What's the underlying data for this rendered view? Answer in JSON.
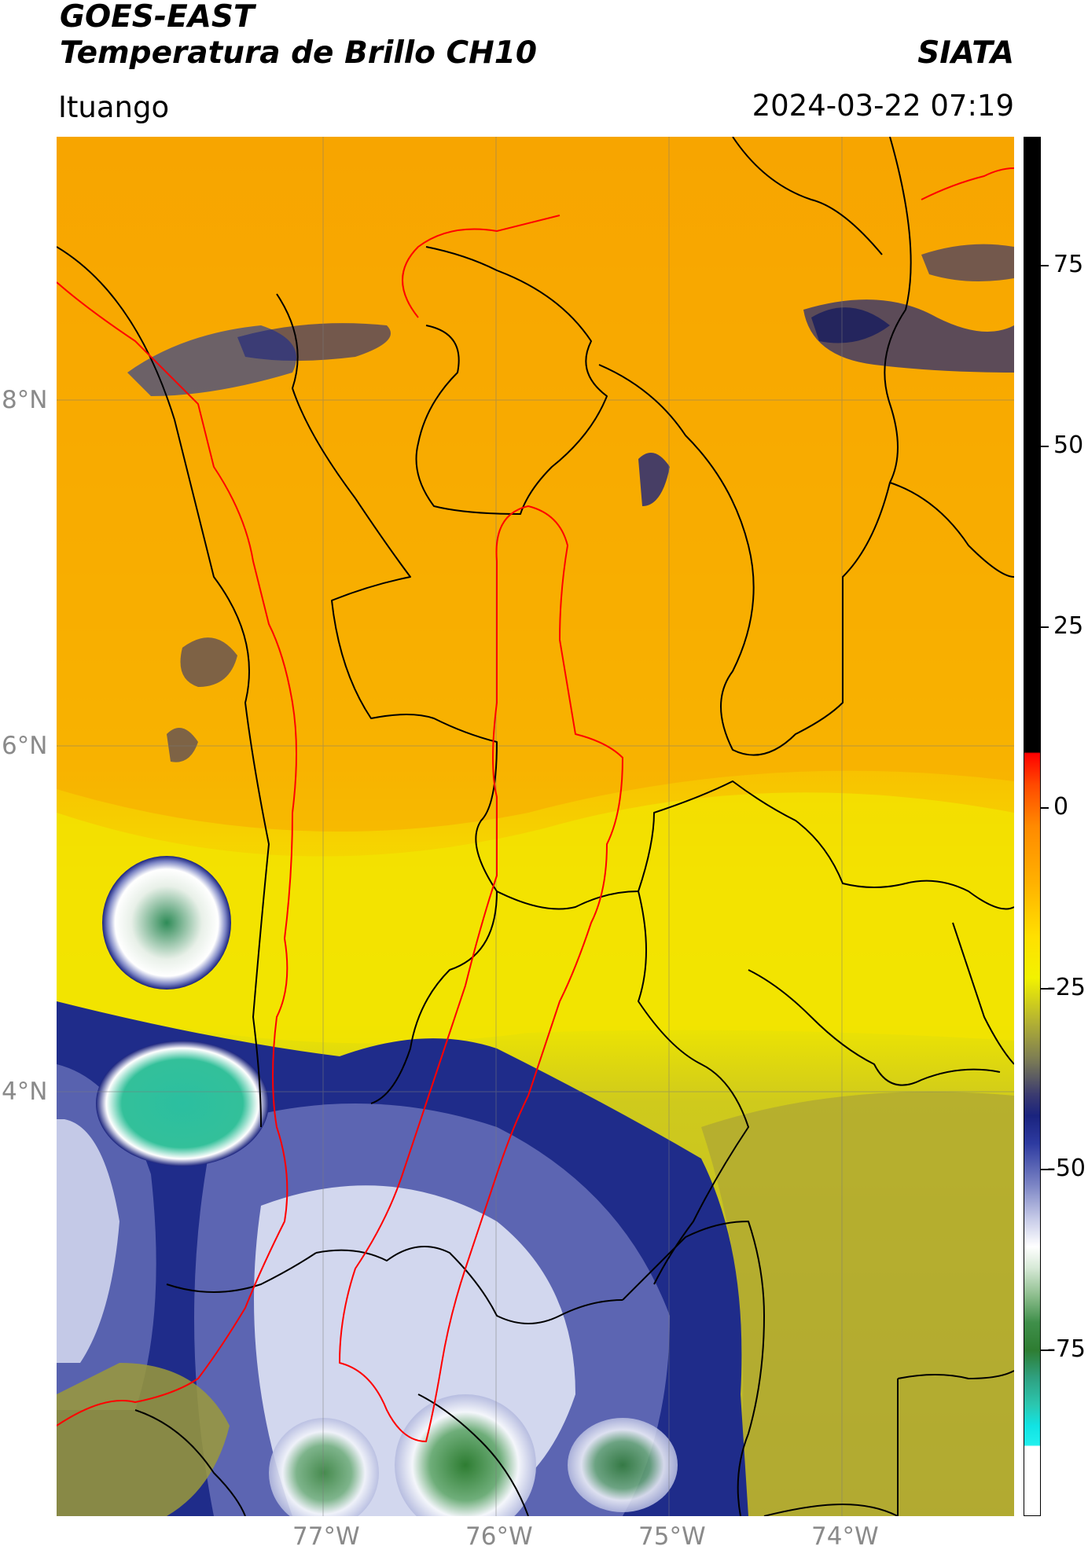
{
  "header": {
    "satellite": "GOES-EAST",
    "product": "Temperatura de Brillo CH10",
    "org": "SIATA",
    "location": "Ituango",
    "datetime": "2024-03-22 07:19"
  },
  "map": {
    "lat_ticks": [
      "8°N",
      "6°N",
      "4°N"
    ],
    "lon_ticks": [
      "77°W",
      "76°W",
      "75°W",
      "74°W"
    ],
    "colors": {
      "warm": "#f7a500",
      "yellow": "#f5e600",
      "olive": "#a9a33a",
      "navy": "#1a237e",
      "white": "#ffffff",
      "green": "#2e7d32",
      "teal": "#2bbfa0",
      "boundary": "#000000",
      "basin": "#ff0000"
    }
  },
  "colorbar": {
    "labels": [
      "75",
      "50",
      "25",
      "0",
      "-25",
      "-50",
      "-75"
    ],
    "range": [
      -95,
      90
    ]
  }
}
